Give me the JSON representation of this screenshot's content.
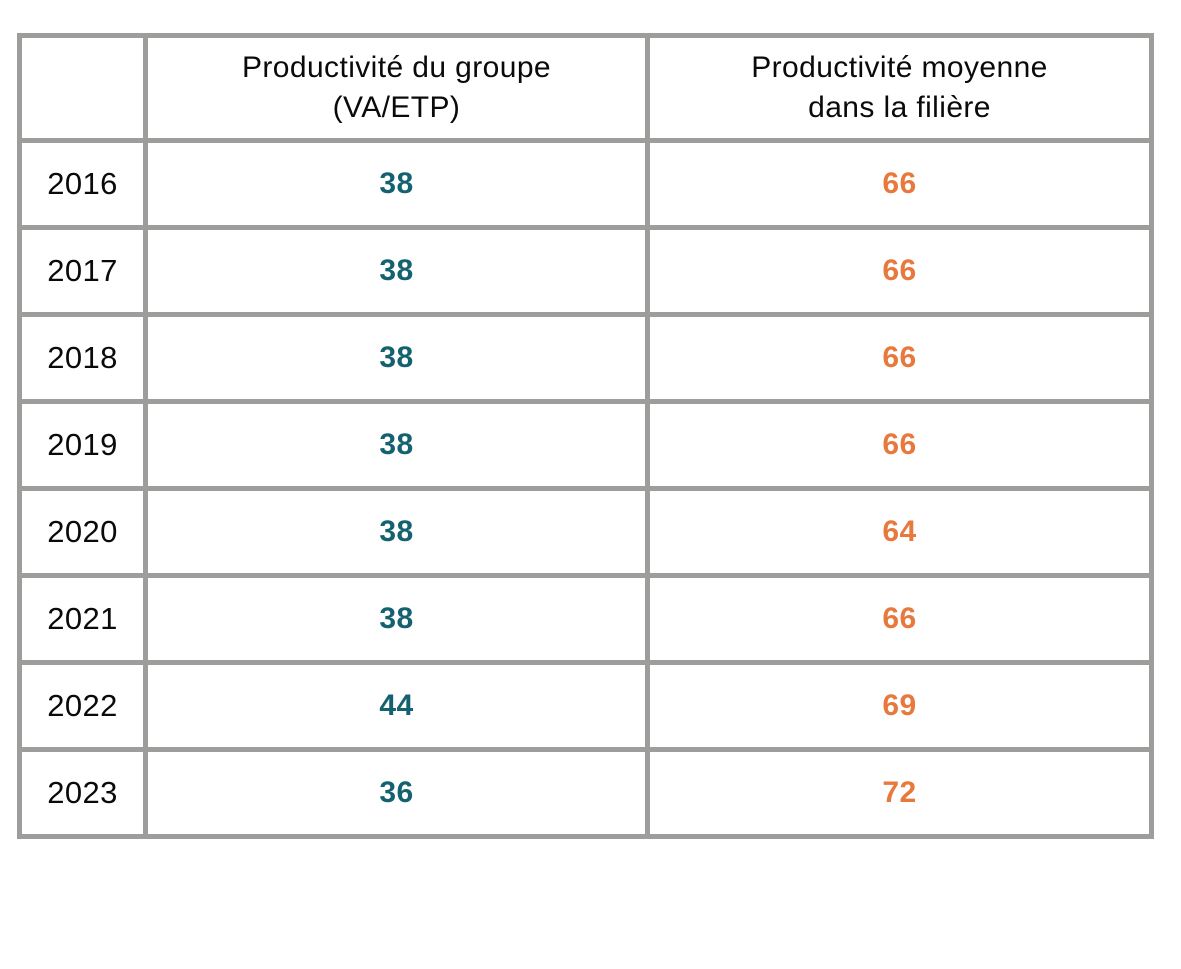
{
  "table": {
    "columns": [
      {
        "id": "group",
        "label": "Productivité du groupe (VA/ETP)",
        "lines": [
          "Productivité du groupe",
          "(VA/ETP)"
        ]
      },
      {
        "id": "filiere",
        "label": "Productivité moyenne dans la filière",
        "lines": [
          "Productivité moyenne",
          "dans la filière"
        ]
      }
    ],
    "rows": [
      {
        "year": "2016",
        "group": "38",
        "filiere": "66"
      },
      {
        "year": "2017",
        "group": "38",
        "filiere": "66"
      },
      {
        "year": "2018",
        "group": "38",
        "filiere": "66"
      },
      {
        "year": "2019",
        "group": "38",
        "filiere": "66"
      },
      {
        "year": "2020",
        "group": "38",
        "filiere": "64"
      },
      {
        "year": "2021",
        "group": "38",
        "filiere": "66"
      },
      {
        "year": "2022",
        "group": "44",
        "filiere": "69"
      },
      {
        "year": "2023",
        "group": "36",
        "filiere": "72"
      }
    ]
  },
  "colors": {
    "group_value": "#14616F",
    "filiere_value": "#E8793D",
    "border": "#9D9D9C",
    "text": "#0A0A0A"
  },
  "chart_data": {
    "type": "table",
    "categories": [
      "2016",
      "2017",
      "2018",
      "2019",
      "2020",
      "2021",
      "2022",
      "2023"
    ],
    "series": [
      {
        "name": "Productivité du groupe (VA/ETP)",
        "values": [
          38,
          38,
          38,
          38,
          38,
          38,
          44,
          36
        ]
      },
      {
        "name": "Productivité moyenne dans la filière",
        "values": [
          66,
          66,
          66,
          66,
          64,
          66,
          69,
          72
        ]
      }
    ],
    "title": "",
    "xlabel": "",
    "ylabel": ""
  }
}
